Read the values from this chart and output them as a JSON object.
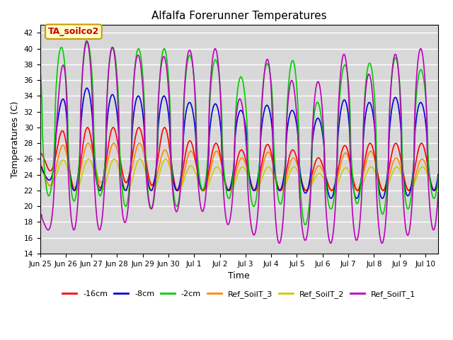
{
  "title": "Alfalfa Forerunner Temperatures",
  "xlabel": "Time",
  "ylabel": "Temperatures (C)",
  "ylim": [
    14,
    43
  ],
  "yticks": [
    14,
    16,
    18,
    20,
    22,
    24,
    26,
    28,
    30,
    32,
    34,
    36,
    38,
    40,
    42
  ],
  "background_color": "#e8e8e8",
  "plot_bg_color": "#d8d8d8",
  "annotation_text": "TA_soilco2",
  "annotation_color": "#cc0000",
  "annotation_bg": "#ffffcc",
  "annotation_border": "#cc9900",
  "series": {
    "-16cm": {
      "color": "#ff0000",
      "lw": 1.2
    },
    "-8cm": {
      "color": "#0000dd",
      "lw": 1.2
    },
    "-2cm": {
      "color": "#00cc00",
      "lw": 1.2
    },
    "Ref_SoilT_3": {
      "color": "#ff8800",
      "lw": 1.2
    },
    "Ref_SoilT_2": {
      "color": "#cccc00",
      "lw": 1.2
    },
    "Ref_SoilT_1": {
      "color": "#bb00bb",
      "lw": 1.2
    }
  },
  "xtick_labels": [
    "Jun 25",
    "Jun 26",
    "Jun 27",
    "Jun 28",
    "Jun 29",
    "Jun 30",
    "Jul 1",
    "Jul 2",
    "Jul 3",
    "Jul 4",
    "Jul 5",
    "Jul 6",
    "Jul 7",
    "Jul 8",
    "Jul 9",
    "Jul 10"
  ],
  "num_days": 15.5,
  "points_per_day": 96,
  "figsize": [
    6.4,
    4.8
  ],
  "dpi": 100
}
